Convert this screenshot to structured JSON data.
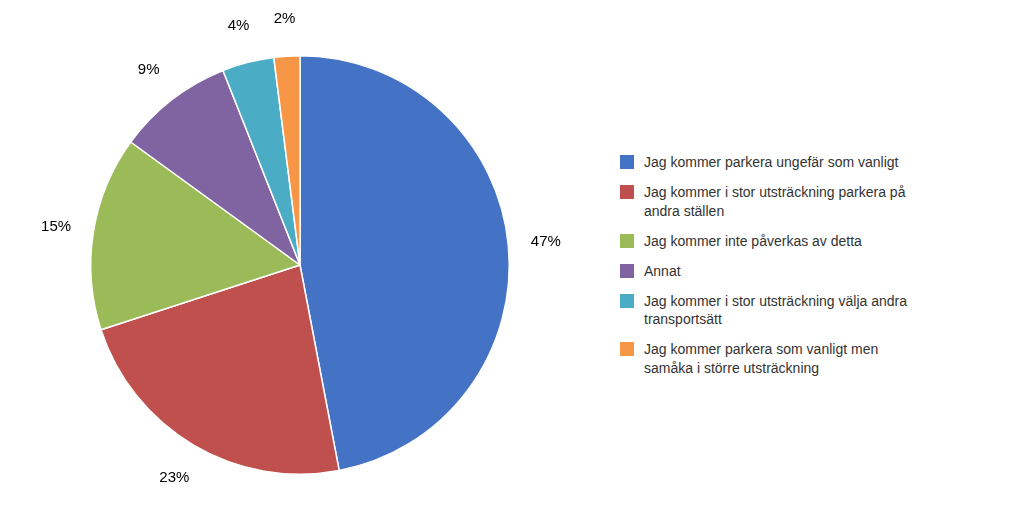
{
  "chart_data": {
    "type": "pie",
    "categories": [
      "Jag kommer parkera ungefär som vanligt",
      "Jag kommer i stor utsträckning parkera på\nandra ställen",
      "Jag kommer inte påverkas av detta",
      "Annat",
      "Jag kommer i stor utsträckning välja andra\ntransportsätt",
      "Jag kommer parkera som vanligt men\nsamåka i större utsträckning"
    ],
    "values": [
      47,
      23,
      15,
      9,
      4,
      2
    ],
    "value_labels": [
      "47%",
      "23%",
      "15%",
      "9%",
      "4%",
      "2%"
    ],
    "data_labels": true,
    "colors": [
      "#4472C4",
      "#C0504D",
      "#9BBB59",
      "#8064A2",
      "#4BACC6",
      "#F79646"
    ],
    "legend": "right"
  }
}
